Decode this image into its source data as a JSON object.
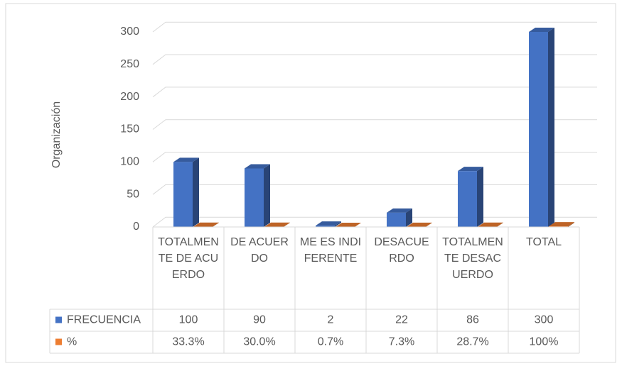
{
  "chart_data": {
    "type": "bar3d",
    "y_label": "Organización",
    "categories": [
      "TOTALMENTE DE ACUERDO",
      "DE ACUERDO",
      "ME ES INDIFERENTE",
      "DESACUERDO",
      "TOTALMENTE DESACUERDO",
      "TOTAL"
    ],
    "series": [
      {
        "name": "FRECUENCIA",
        "color": "#4472c4",
        "values": [
          100,
          90,
          2,
          22,
          86,
          300
        ]
      },
      {
        "name": "%",
        "color": "#ed7d31",
        "values": [
          0.333,
          0.3,
          0.007,
          0.073,
          0.287,
          1
        ],
        "value_labels": [
          "33.3%",
          "30.0%",
          "0.7%",
          "7.3%",
          "28.7%",
          "100%"
        ]
      }
    ],
    "ylim": [
      0,
      300
    ],
    "yticks": [
      0,
      50,
      100,
      150,
      200,
      250,
      300
    ],
    "grid": true,
    "data_table": true
  }
}
